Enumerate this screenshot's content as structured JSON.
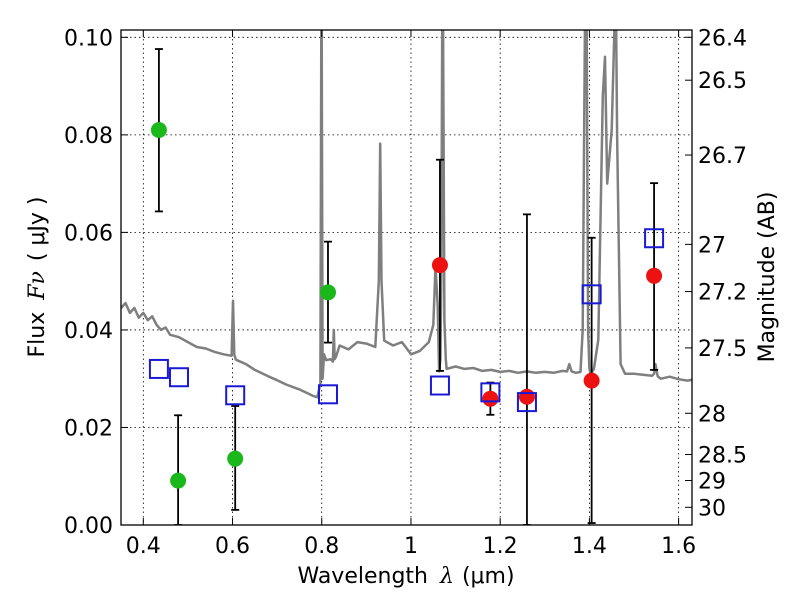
{
  "chart_data": {
    "type": "scatter",
    "xlabel": "Wavelength",
    "xlabel_symbol": "λ",
    "xlabel_unit": "(μm)",
    "ylabel": "Flux",
    "ylabel_symbol": "Fν",
    "ylabel_unit": "( μJy )",
    "ylabel_right": "Magnitude (AB)",
    "xlim": [
      0.35,
      1.63
    ],
    "ylim": [
      0.0,
      0.1015
    ],
    "grid": true,
    "x_ticks": [
      0.4,
      0.6,
      0.8,
      1.0,
      1.2,
      1.4,
      1.6
    ],
    "x_tick_labels": [
      "0.4",
      "0.6",
      "0.8",
      "1",
      "1.2",
      "1.4",
      "1.6"
    ],
    "y_ticks": [
      0.0,
      0.02,
      0.04,
      0.06,
      0.08,
      0.1
    ],
    "y_tick_labels": [
      "0.00",
      "0.02",
      "0.04",
      "0.06",
      "0.08",
      "0.10"
    ],
    "right_ticks": [
      {
        "label": "26.4",
        "mag": 26.4
      },
      {
        "label": "26.5",
        "mag": 26.5
      },
      {
        "label": "26.7",
        "mag": 26.7
      },
      {
        "label": "27",
        "mag": 27.0
      },
      {
        "label": "27.2",
        "mag": 27.2
      },
      {
        "label": "27.5",
        "mag": 27.5
      },
      {
        "label": "28",
        "mag": 28.0
      },
      {
        "label": "28.5",
        "mag": 28.5
      },
      {
        "label": "29",
        "mag": 29.0
      },
      {
        "label": "30",
        "mag": 30.0
      }
    ],
    "series": [
      {
        "marker": "circle",
        "color": "#1ab81a",
        "points": [
          {
            "x": 0.435,
            "y": 0.081,
            "err_lo": 0.0643,
            "err_hi": 0.0976
          },
          {
            "x": 0.478,
            "y": 0.0091,
            "err_lo": 0.0,
            "err_hi": 0.0225
          },
          {
            "x": 0.606,
            "y": 0.0136,
            "err_lo": 0.0031,
            "err_hi": 0.0244
          },
          {
            "x": 0.814,
            "y": 0.0477,
            "err_lo": 0.0374,
            "err_hi": 0.0581
          }
        ]
      },
      {
        "marker": "circle",
        "color": "#ee1111",
        "points": [
          {
            "x": 1.065,
            "y": 0.0533,
            "err_lo": 0.0316,
            "err_hi": 0.0749
          },
          {
            "x": 1.178,
            "y": 0.0259,
            "err_lo": 0.0226,
            "err_hi": 0.0292
          },
          {
            "x": 1.26,
            "y": 0.0263,
            "err_lo": 0.0,
            "err_hi": 0.0637
          },
          {
            "x": 1.405,
            "y": 0.0296,
            "err_lo": 0.0004,
            "err_hi": 0.0589
          },
          {
            "x": 1.545,
            "y": 0.0511,
            "err_lo": 0.0318,
            "err_hi": 0.0701
          }
        ]
      },
      {
        "marker": "square",
        "color": "#1a1ad6",
        "points": [
          {
            "x": 0.435,
            "y": 0.032
          },
          {
            "x": 0.48,
            "y": 0.0303
          },
          {
            "x": 0.606,
            "y": 0.0266
          },
          {
            "x": 0.814,
            "y": 0.0268
          },
          {
            "x": 1.065,
            "y": 0.0286
          },
          {
            "x": 1.178,
            "y": 0.0272
          },
          {
            "x": 1.26,
            "y": 0.0252
          },
          {
            "x": 1.405,
            "y": 0.0473
          },
          {
            "x": 1.545,
            "y": 0.0588
          }
        ]
      },
      {
        "type": "line",
        "color": "#7f7f7f",
        "x": [
          0.35,
          0.36,
          0.37,
          0.38,
          0.39,
          0.4,
          0.41,
          0.42,
          0.43,
          0.44,
          0.45,
          0.46,
          0.48,
          0.5,
          0.52,
          0.54,
          0.56,
          0.58,
          0.598,
          0.601,
          0.604,
          0.607,
          0.61,
          0.63,
          0.65,
          0.68,
          0.7,
          0.72,
          0.75,
          0.78,
          0.79,
          0.797,
          0.799,
          0.8,
          0.802,
          0.805,
          0.81,
          0.82,
          0.825,
          0.827,
          0.829,
          0.832,
          0.84,
          0.86,
          0.88,
          0.9,
          0.92,
          0.928,
          0.931,
          0.934,
          0.94,
          0.96,
          0.98,
          1.0,
          1.02,
          1.04,
          1.05,
          1.055,
          1.06,
          1.063,
          1.066,
          1.068,
          1.07,
          1.072,
          1.075,
          1.078,
          1.08,
          1.1,
          1.12,
          1.14,
          1.16,
          1.18,
          1.2,
          1.22,
          1.24,
          1.26,
          1.28,
          1.3,
          1.32,
          1.34,
          1.35,
          1.355,
          1.36,
          1.37,
          1.38,
          1.385,
          1.39,
          1.394,
          1.397,
          1.4,
          1.403,
          1.41,
          1.42,
          1.43,
          1.435,
          1.44,
          1.45,
          1.456,
          1.458,
          1.46,
          1.462,
          1.47,
          1.48,
          1.5,
          1.52,
          1.54,
          1.545,
          1.548,
          1.55,
          1.553,
          1.56,
          1.58,
          1.6,
          1.62,
          1.63
        ],
        "y": [
          0.0445,
          0.0455,
          0.0435,
          0.0445,
          0.0425,
          0.0435,
          0.042,
          0.0428,
          0.041,
          0.04,
          0.0405,
          0.039,
          0.0385,
          0.0375,
          0.0365,
          0.0362,
          0.0355,
          0.035,
          0.0347,
          0.046,
          0.035,
          0.034,
          0.0338,
          0.033,
          0.0318,
          0.0305,
          0.0297,
          0.0288,
          0.0278,
          0.0265,
          0.0262,
          0.029,
          0.1015,
          0.1015,
          0.03,
          0.035,
          0.0338,
          0.034,
          0.0335,
          0.04,
          0.034,
          0.0345,
          0.0368,
          0.036,
          0.0375,
          0.0372,
          0.0365,
          0.05,
          0.0782,
          0.05,
          0.0378,
          0.0368,
          0.0375,
          0.035,
          0.0357,
          0.0375,
          0.041,
          0.053,
          0.045,
          0.0315,
          0.034,
          0.05,
          0.1015,
          0.1015,
          0.042,
          0.034,
          0.032,
          0.0325,
          0.032,
          0.0322,
          0.0316,
          0.0318,
          0.0314,
          0.0316,
          0.0312,
          0.0315,
          0.0312,
          0.0314,
          0.0312,
          0.0316,
          0.0315,
          0.033,
          0.0315,
          0.0312,
          0.0314,
          0.04,
          0.1015,
          0.1015,
          0.04,
          0.032,
          0.031,
          0.032,
          0.038,
          0.088,
          0.096,
          0.07,
          0.081,
          0.1015,
          0.1015,
          0.1015,
          0.08,
          0.033,
          0.031,
          0.031,
          0.0308,
          0.0306,
          0.031,
          0.033,
          0.032,
          0.0305,
          0.03,
          0.0304,
          0.0299,
          0.0296,
          0.0298
        ]
      }
    ]
  }
}
